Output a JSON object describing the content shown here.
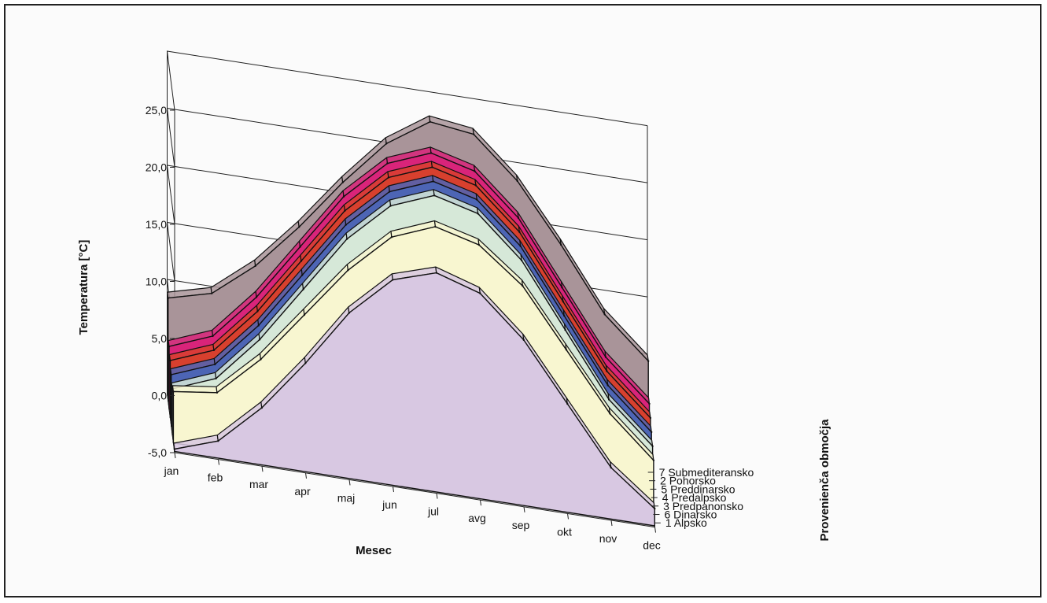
{
  "chart_data": {
    "type": "area",
    "title": "",
    "xlabel": "Mesec",
    "ylabel": "Temperatura [°C]",
    "zlabel": "Provenienča območja",
    "ylim": [
      -5,
      25
    ],
    "y_ticks": [
      "25,0",
      "20,0",
      "15,0",
      "10,0",
      "5,0",
      "0,0",
      "-5,0"
    ],
    "grid": true,
    "categories": [
      "jan",
      "feb",
      "mar",
      "apr",
      "maj",
      "jun",
      "jul",
      "avg",
      "sep",
      "okt",
      "nov",
      "dec"
    ],
    "series": [
      {
        "name": "1 Alpsko",
        "color": "#d8c8e2",
        "values": [
          -4.8,
          -3.5,
          0.0,
          4.5,
          9.5,
          13.0,
          14.2,
          13.0,
          9.5,
          4.5,
          -0.5,
          -3.5
        ]
      },
      {
        "name": "6 Dinarsko",
        "color": "#f8f6d0",
        "values": [
          -0.5,
          0.0,
          3.5,
          8.0,
          12.5,
          16.0,
          17.5,
          16.5,
          13.5,
          8.5,
          3.5,
          0.0
        ]
      },
      {
        "name": "3 Predpanonsko",
        "color": "#d6e8d8",
        "values": [
          -1.0,
          0.5,
          4.5,
          9.5,
          14.5,
          18.0,
          19.5,
          18.5,
          15.0,
          9.5,
          4.0,
          0.5
        ]
      },
      {
        "name": "4 Predalpsko",
        "color": "#4d65b5",
        "values": [
          -0.5,
          1.0,
          5.0,
          10.0,
          15.0,
          18.5,
          20.0,
          19.0,
          15.5,
          10.0,
          4.5,
          1.0
        ]
      },
      {
        "name": "5 Preddinarsko",
        "color": "#d8402e",
        "values": [
          0.0,
          1.5,
          5.5,
          10.5,
          15.5,
          19.0,
          20.5,
          19.5,
          16.0,
          10.5,
          5.0,
          1.5
        ]
      },
      {
        "name": "2 Pohorsko",
        "color": "#d9247a",
        "values": [
          0.5,
          2.0,
          6.0,
          11.0,
          16.0,
          19.5,
          21.0,
          20.0,
          16.5,
          11.0,
          5.5,
          2.0
        ]
      },
      {
        "name": "7 Submediteransko",
        "color": "#a99499",
        "values": [
          4.0,
          5.0,
          8.0,
          12.0,
          16.5,
          20.5,
          23.0,
          22.5,
          19.0,
          14.0,
          8.5,
          5.0
        ]
      }
    ]
  }
}
